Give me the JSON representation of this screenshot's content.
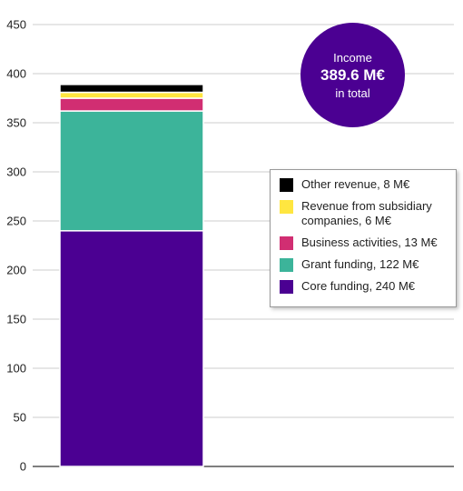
{
  "chart_data": {
    "type": "bar",
    "stacked": true,
    "categories": [
      ""
    ],
    "series": [
      {
        "name": "Core funding, 240 M€",
        "values": [
          240
        ],
        "color": "#4b0092"
      },
      {
        "name": "Grant funding, 122 M€",
        "values": [
          122
        ],
        "color": "#3cb49a"
      },
      {
        "name": "Business activities, 13 M€",
        "values": [
          13
        ],
        "color": "#d12e72"
      },
      {
        "name": "Revenue from subsidiary companies, 6 M€",
        "values": [
          6
        ],
        "color": "#ffe640"
      },
      {
        "name": "Other revenue, 8 M€",
        "values": [
          8
        ],
        "color": "#000000"
      }
    ],
    "ylim": [
      0,
      450
    ],
    "yticks": [
      "0",
      "50",
      "100",
      "150",
      "200",
      "250",
      "300",
      "350",
      "400",
      "450"
    ],
    "grid": true,
    "legend_position": "right-middle",
    "legend_order": [
      4,
      3,
      2,
      1,
      0
    ],
    "annotation": {
      "label": "Income",
      "total": "389.6 M€",
      "suffix": "in total",
      "color": "#4b0092"
    }
  }
}
